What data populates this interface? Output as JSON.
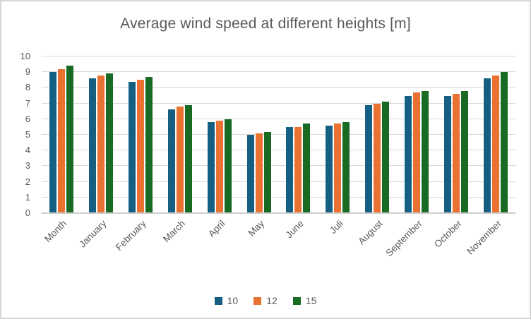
{
  "chart_data": {
    "type": "bar",
    "title": "Average wind speed at different heights [m]",
    "categories": [
      "Month",
      "January",
      "February",
      "March",
      "April",
      "May",
      "June",
      "Juli",
      "August",
      "September",
      "October",
      "November"
    ],
    "series": [
      {
        "name": "10",
        "color": "#156082",
        "values": [
          9.0,
          8.6,
          8.4,
          6.6,
          5.8,
          5.0,
          5.5,
          5.6,
          6.9,
          7.5,
          7.5,
          8.6
        ]
      },
      {
        "name": "12",
        "color": "#E97132",
        "values": [
          9.2,
          8.8,
          8.5,
          6.8,
          5.9,
          5.1,
          5.5,
          5.7,
          7.0,
          7.7,
          7.6,
          8.8
        ]
      },
      {
        "name": "15",
        "color": "#196B24",
        "values": [
          9.4,
          8.9,
          8.7,
          6.9,
          6.0,
          5.2,
          5.7,
          5.8,
          7.1,
          7.8,
          7.8,
          9.0
        ]
      }
    ],
    "xlabel": "",
    "ylabel": "",
    "ylim": [
      0,
      10
    ],
    "y_ticks": [
      0,
      1,
      2,
      3,
      4,
      5,
      6,
      7,
      8,
      9,
      10
    ],
    "grid": true,
    "legend_position": "bottom",
    "x_label_rotation_deg": 45
  },
  "style": {
    "text_color": "#595959",
    "gridline_color": "#d9d9d9",
    "axis_line_color": "#cfcfcf",
    "background_color": "#ffffff",
    "border_color": "#d6d6d6"
  }
}
